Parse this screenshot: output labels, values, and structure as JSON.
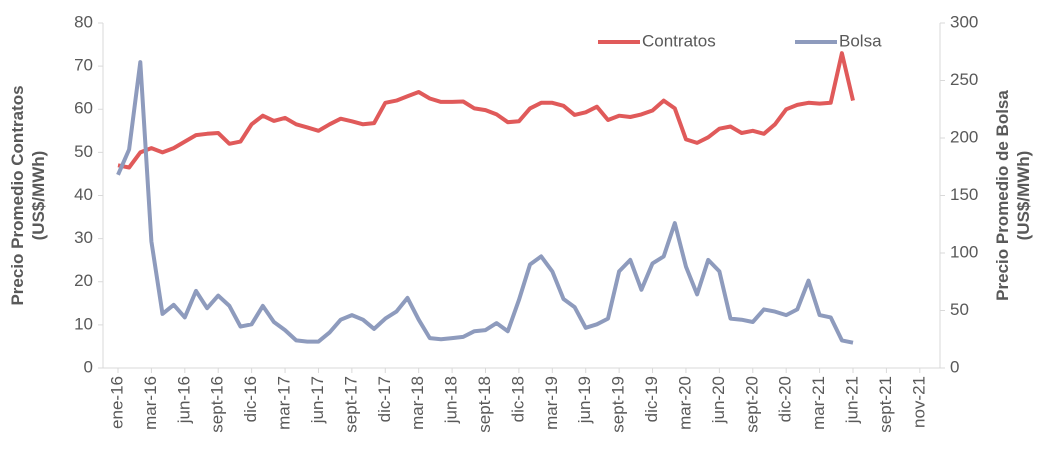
{
  "chart_data": {
    "type": "line",
    "categories": [
      "ene-16",
      null,
      null,
      "mar-16",
      null,
      null,
      "jun-16",
      null,
      null,
      "sept-16",
      null,
      null,
      "dic-16",
      null,
      null,
      "mar-17",
      null,
      null,
      "jun-17",
      null,
      null,
      "sept-17",
      null,
      null,
      "dic-17",
      null,
      null,
      "mar-18",
      null,
      null,
      "jun-18",
      null,
      null,
      "sept-18",
      null,
      null,
      "dic-18",
      null,
      null,
      "mar-19",
      null,
      null,
      "jun-19",
      null,
      null,
      "sept-19",
      null,
      null,
      "dic-19",
      null,
      null,
      "mar-20",
      null,
      null,
      "jun-20",
      null,
      null,
      "sept-20",
      null,
      null,
      "dic-20",
      null,
      null,
      "mar-21",
      null,
      null,
      "jun-21",
      null,
      null,
      "sept-21",
      null,
      null,
      "nov-21"
    ],
    "series": [
      {
        "name": "Contratos",
        "color": "#e05a5a",
        "axis": "y",
        "values": [
          47,
          46.5,
          50,
          51,
          50,
          51,
          52.5,
          54,
          54.3,
          54.5,
          52,
          52.5,
          56.5,
          58.5,
          57.3,
          58,
          56.5,
          55.8,
          55,
          56.5,
          57.8,
          57.2,
          56.5,
          56.8,
          61.5,
          62,
          63,
          64,
          62.5,
          61.7,
          61.7,
          61.8,
          60.2,
          59.8,
          58.8,
          57,
          57.2,
          60.2,
          61.5,
          61.5,
          60.8,
          58.7,
          59.3,
          60.6,
          57.5,
          58.5,
          58.2,
          58.8,
          59.7,
          62,
          60.2,
          53,
          52.2,
          53.5,
          55.5,
          56,
          54.5,
          55,
          54.3,
          56.5,
          60,
          61,
          61.5,
          61.3,
          61.5,
          73,
          62,
          null,
          null,
          null,
          null,
          null,
          null
        ]
      },
      {
        "name": "Bolsa",
        "color": "#8e9bbd",
        "axis": "y2",
        "values": [
          168,
          190,
          266,
          110,
          47,
          55,
          44,
          67,
          52,
          63,
          54,
          36,
          38,
          54,
          40,
          33,
          24,
          23,
          23,
          31,
          42,
          46,
          42,
          34,
          43,
          49,
          61,
          42,
          26,
          25,
          26,
          27,
          32,
          33,
          39,
          32,
          59,
          90,
          97,
          84,
          60,
          53,
          35,
          38,
          43,
          84,
          94,
          68,
          91,
          97,
          126,
          88,
          64,
          94,
          84,
          43,
          42,
          40,
          51,
          49,
          46,
          51,
          76,
          46,
          44,
          24,
          22,
          null,
          null,
          null,
          null,
          null,
          null
        ]
      }
    ],
    "y_label": [
      "Precio Promedio Contratos",
      "(US$/MWh)"
    ],
    "y2_label": [
      "Precio Promedio de Bolsa",
      "(US$/MWh)"
    ],
    "ylim": [
      0,
      80
    ],
    "yticks": [
      0,
      10,
      20,
      30,
      40,
      50,
      60,
      70,
      80
    ],
    "y2lim": [
      0,
      300
    ],
    "y2ticks": [
      0,
      50,
      100,
      150,
      200,
      250,
      300
    ],
    "legend": "top"
  }
}
